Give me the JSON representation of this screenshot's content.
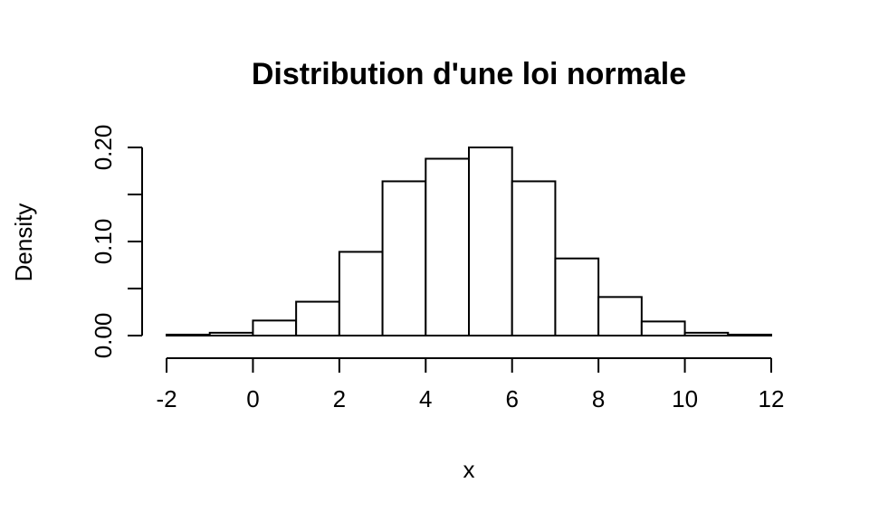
{
  "chart_data": {
    "type": "bar",
    "title": "Distribution d'une loi normale",
    "xlabel": "x",
    "ylabel": "Density",
    "bins": [
      {
        "from": -2,
        "to": -1,
        "density": 0.001
      },
      {
        "from": -1,
        "to": 0,
        "density": 0.003
      },
      {
        "from": 0,
        "to": 1,
        "density": 0.016
      },
      {
        "from": 1,
        "to": 2,
        "density": 0.036
      },
      {
        "from": 2,
        "to": 3,
        "density": 0.089
      },
      {
        "from": 3,
        "to": 4,
        "density": 0.164
      },
      {
        "from": 4,
        "to": 5,
        "density": 0.188
      },
      {
        "from": 5,
        "to": 6,
        "density": 0.2
      },
      {
        "from": 6,
        "to": 7,
        "density": 0.164
      },
      {
        "from": 7,
        "to": 8,
        "density": 0.082
      },
      {
        "from": 8,
        "to": 9,
        "density": 0.041
      },
      {
        "from": 9,
        "to": 10,
        "density": 0.015
      },
      {
        "from": 10,
        "to": 11,
        "density": 0.003
      },
      {
        "from": 11,
        "to": 12,
        "density": 0.001
      }
    ],
    "xlim": [
      -2,
      12
    ],
    "ylim": [
      0,
      0.2
    ],
    "x_ticks": [
      -2,
      0,
      2,
      4,
      6,
      8,
      10,
      12
    ],
    "x_tick_labels": [
      "-2",
      "0",
      "2",
      "4",
      "6",
      "8",
      "10",
      "12"
    ],
    "y_ticks": [
      0,
      0.05,
      0.1,
      0.15,
      0.2
    ],
    "y_tick_labels": [
      "0.00",
      "",
      "0.10",
      "",
      "0.20"
    ],
    "grid": false,
    "colors": {
      "bar_fill": "#ffffff",
      "bar_stroke": "#000000",
      "background": "#ffffff"
    }
  }
}
